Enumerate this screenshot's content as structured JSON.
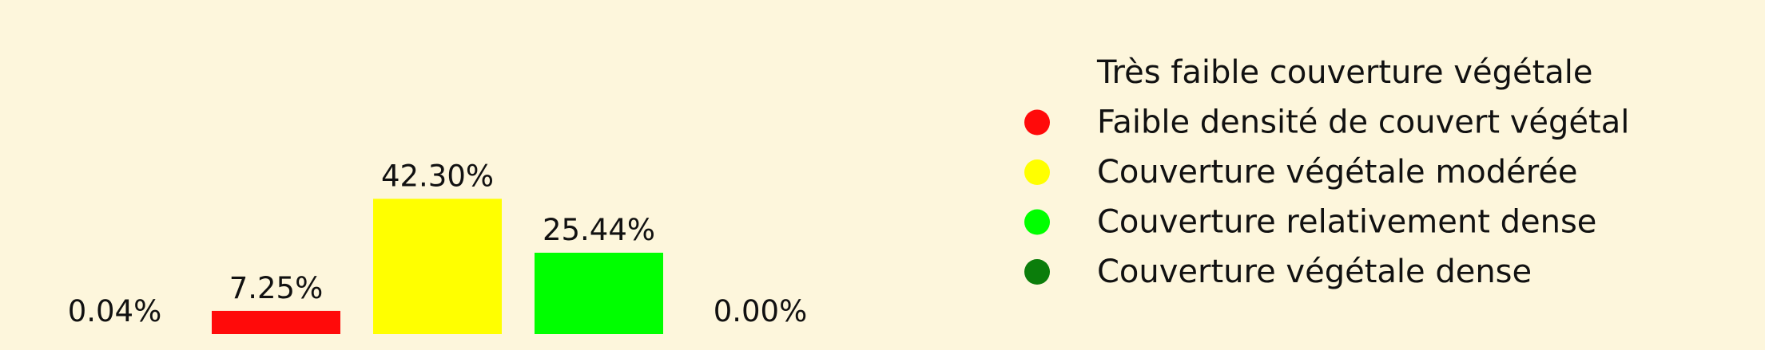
{
  "chart_data": {
    "type": "bar",
    "categories": [
      "Très faible couverture végétale",
      "Faible densité de couvert végétal",
      "Couverture végétale modérée",
      "Couverture relativement dense",
      "Couverture végétale dense"
    ],
    "values": [
      0.04,
      7.25,
      42.3,
      25.44,
      0.0
    ],
    "value_labels": [
      "0.04%",
      "7.25%",
      "42.30%",
      "25.44%",
      "0.00%"
    ],
    "colors": [
      "#fdf6dc",
      "#ff0a0a",
      "#ffff00",
      "#00ff00",
      "#0b7d0b"
    ],
    "legend_position": "right",
    "grid": false,
    "axes_visible": false,
    "background": "#fdf6dc"
  }
}
